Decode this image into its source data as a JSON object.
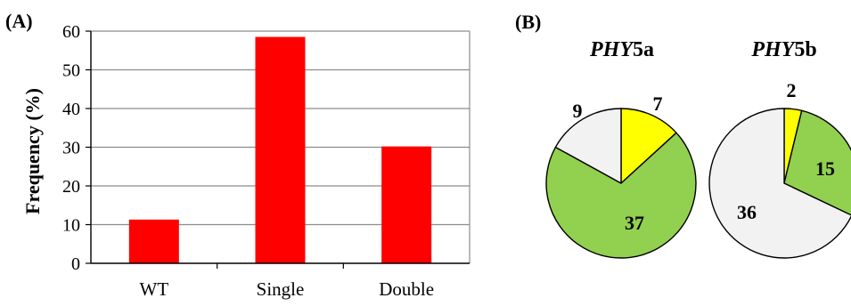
{
  "panels": {
    "a_label": "(A)",
    "b_label": "(B)"
  },
  "chart_data": [
    {
      "type": "bar",
      "title": "",
      "categories": [
        "WT",
        "Single",
        "Double"
      ],
      "values": [
        11.3,
        58.5,
        30.2
      ],
      "ylabel": "Frequency (%)",
      "xlabel": "",
      "ylim": [
        0,
        60
      ],
      "yticks": [
        "0",
        "10",
        "20",
        "30",
        "40",
        "50",
        "60"
      ],
      "grid": true,
      "bar_color": "#ff0000"
    },
    {
      "type": "pie",
      "title_italic": "PHY",
      "title_rest": "5a",
      "labels": [
        "7",
        "37",
        "9"
      ],
      "values": [
        7,
        37,
        9
      ],
      "colors": [
        "#ffff00",
        "#92d050",
        "#f2f2f2"
      ]
    },
    {
      "type": "pie",
      "title_italic": "PHY",
      "title_rest": "5b",
      "labels": [
        "2",
        "15",
        "36"
      ],
      "values": [
        2,
        15,
        36
      ],
      "colors": [
        "#ffff00",
        "#92d050",
        "#f2f2f2"
      ]
    }
  ]
}
